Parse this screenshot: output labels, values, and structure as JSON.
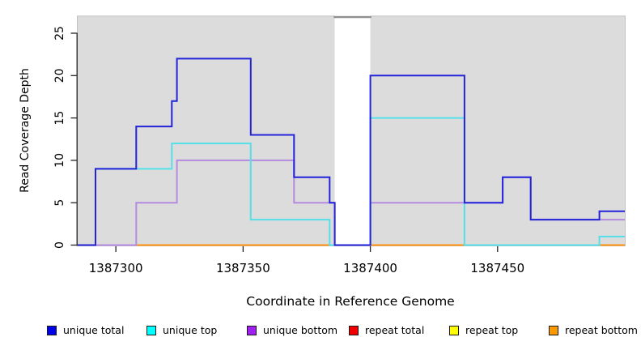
{
  "chart_data": {
    "type": "line",
    "subtype": "step-after-coverage",
    "title": "",
    "xlabel": "Coordinate in Reference Genome",
    "ylabel": "Read Coverage Depth",
    "xlim": [
      1387285,
      1387500
    ],
    "ylim": [
      0,
      27
    ],
    "x_ticks": [
      1387300,
      1387350,
      1387400,
      1387450
    ],
    "y_ticks": [
      0,
      5,
      10,
      15,
      20,
      25
    ],
    "grid": "off",
    "panel_background": "#dcdcdc",
    "panel_border_color": "#c2c2c2",
    "axis_color": "#222222",
    "masked_region": {
      "x_start": 1387386,
      "x_end": 1387400,
      "fill": "#ffffff",
      "cap_color": "#8f8f8f",
      "cap_value": 27
    },
    "draw_order": [
      "repeat total",
      "repeat top",
      "repeat bottom",
      "unique bottom",
      "unique top",
      "unique total"
    ],
    "legend_order": [
      "unique total",
      "unique top",
      "unique bottom",
      "repeat total",
      "repeat top",
      "repeat bottom"
    ],
    "legend_position": "bottom",
    "series": [
      {
        "name": "unique total",
        "legend_color": "#0000EE",
        "line_color": "#2323D9",
        "steps": [
          [
            1387285,
            0
          ],
          [
            1387292,
            9
          ],
          [
            1387308,
            14
          ],
          [
            1387322,
            17
          ],
          [
            1387324,
            22
          ],
          [
            1387353,
            13
          ],
          [
            1387370,
            8
          ],
          [
            1387384,
            5
          ],
          [
            1387386,
            0
          ],
          [
            1387400,
            20
          ],
          [
            1387437,
            5
          ],
          [
            1387452,
            8
          ],
          [
            1387463,
            3
          ],
          [
            1387490,
            4
          ]
        ]
      },
      {
        "name": "unique top",
        "legend_color": "#00FFFF",
        "line_color": "#55DFE8",
        "steps": [
          [
            1387285,
            0
          ],
          [
            1387292,
            9
          ],
          [
            1387322,
            12
          ],
          [
            1387353,
            3
          ],
          [
            1387384,
            0
          ],
          [
            1387400,
            15
          ],
          [
            1387437,
            0
          ],
          [
            1387490,
            1
          ]
        ]
      },
      {
        "name": "unique bottom",
        "legend_color": "#A020F0",
        "line_color": "#B48BE0",
        "steps": [
          [
            1387285,
            0
          ],
          [
            1387308,
            5
          ],
          [
            1387324,
            10
          ],
          [
            1387370,
            5
          ],
          [
            1387386,
            0
          ],
          [
            1387400,
            5
          ],
          [
            1387452,
            8
          ],
          [
            1387463,
            3
          ]
        ]
      },
      {
        "name": "repeat total",
        "legend_color": "#EE0000",
        "line_color": "#E03030",
        "steps": [
          [
            1387285,
            0
          ]
        ]
      },
      {
        "name": "repeat top",
        "legend_color": "#FFFF00",
        "line_color": "#F2F20A",
        "steps": [
          [
            1387285,
            0
          ]
        ]
      },
      {
        "name": "repeat bottom",
        "legend_color": "#FF9900",
        "line_color": "#FF930F",
        "steps": [
          [
            1387285,
            0
          ]
        ]
      }
    ]
  }
}
